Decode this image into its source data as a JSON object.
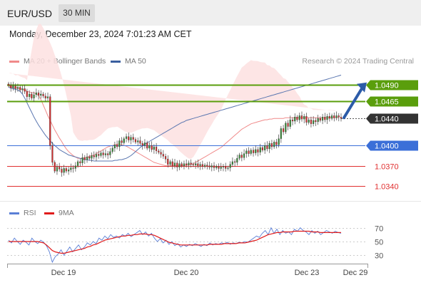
{
  "header": {
    "symbol": "EUR/USD",
    "timeframe": "30 MIN",
    "datetime": "Monday, December 23, 2024 7:01:23 AM CET",
    "credit": "Research © 2024 Trading Central"
  },
  "legend_main": [
    {
      "label": "MA 20 + Bollinger Bands",
      "color": "#f08a8a"
    },
    {
      "label": "MA 50",
      "color": "#3a5f9f"
    }
  ],
  "legend_rsi": [
    {
      "label": "RSI",
      "color": "#5a7fd6"
    },
    {
      "label": "9MA",
      "color": "#e01b1b"
    }
  ],
  "colors": {
    "resistance": "#5a9e0c",
    "pivot": "#3b6fd8",
    "support": "#e03030",
    "last_price": "#333333",
    "arrow": "#2c5ba8",
    "bollinger": "#fde0e0",
    "candle_up": "#3a8a3a",
    "candle_down": "#d23030"
  },
  "chart_data": [
    {
      "type": "candlestick",
      "series_name": "EUR/USD",
      "x_ticks": [
        "Dec 19",
        "Dec 20",
        "Dec 23",
        "Dec 29"
      ],
      "levels": [
        {
          "value": 1.049,
          "label": "1.0490",
          "kind": "resistance"
        },
        {
          "value": 1.0465,
          "label": "1.0465",
          "kind": "resistance"
        },
        {
          "value": 1.044,
          "label": "1.0440",
          "kind": "last"
        },
        {
          "value": 1.04,
          "label": "1.0400",
          "kind": "pivot"
        },
        {
          "value": 1.037,
          "label": "1.0370",
          "kind": "support"
        },
        {
          "value": 1.034,
          "label": "1.0340",
          "kind": "support"
        }
      ],
      "close": [
        1.0489,
        1.0485,
        1.0488,
        1.0484,
        1.0486,
        1.0482,
        1.0484,
        1.048,
        1.0472,
        1.0476,
        1.047,
        1.0475,
        1.0478,
        1.0474,
        1.0476,
        1.0473,
        1.047,
        1.0472,
        1.04,
        1.0375,
        1.0362,
        1.0368,
        1.0365,
        1.036,
        1.0366,
        1.0362,
        1.0364,
        1.0367,
        1.0366,
        1.037,
        1.0376,
        1.0374,
        1.0382,
        1.0379,
        1.0383,
        1.0381,
        1.0385,
        1.0383,
        1.0387,
        1.0385,
        1.0389,
        1.0386,
        1.0388,
        1.0386,
        1.0391,
        1.0396,
        1.0401,
        1.0398,
        1.0407,
        1.0404,
        1.041,
        1.0413,
        1.0408,
        1.0412,
        1.0409,
        1.0405,
        1.0407,
        1.0403,
        1.04,
        1.0404,
        1.0396,
        1.04,
        1.0394,
        1.0398,
        1.0392,
        1.039,
        1.0387,
        1.0384,
        1.038,
        1.0372,
        1.0376,
        1.037,
        1.0374,
        1.0368,
        1.0373,
        1.037,
        1.0373,
        1.0371,
        1.0374,
        1.0372,
        1.0371,
        1.0373,
        1.037,
        1.0372,
        1.0369,
        1.0371,
        1.037,
        1.0368,
        1.037,
        1.0367,
        1.0369,
        1.0366,
        1.0368,
        1.0369,
        1.0366,
        1.0367,
        1.0372,
        1.0376,
        1.0375,
        1.0381,
        1.0386,
        1.0382,
        1.0388,
        1.0392,
        1.0388,
        1.0393,
        1.0389,
        1.0394,
        1.039,
        1.0397,
        1.0393,
        1.04,
        1.0395,
        1.0403,
        1.0398,
        1.0405,
        1.0401,
        1.041,
        1.0425,
        1.042,
        1.0433,
        1.0428,
        1.0438,
        1.0436,
        1.0442,
        1.0438,
        1.0444,
        1.0439,
        1.0443,
        1.0434,
        1.0438,
        1.0432,
        1.0437,
        1.0435,
        1.044,
        1.0437,
        1.0442,
        1.0438,
        1.0443,
        1.044,
        1.0444,
        1.0441,
        1.0444,
        1.0442,
        1.044
      ],
      "ma20": [
        1.0488,
        1.0487,
        1.0486,
        1.0485,
        1.0485,
        1.0484,
        1.0483,
        1.0482,
        1.048,
        1.0479,
        1.0478,
        1.0478,
        1.0476,
        1.0474,
        1.0468,
        1.046,
        1.0452,
        1.0444,
        1.0437,
        1.043,
        1.0423,
        1.0417,
        1.0411,
        1.0406,
        1.04,
        1.0395,
        1.0391,
        1.0388,
        1.0385,
        1.0383,
        1.0381,
        1.0381,
        1.0381,
        1.0382,
        1.0383,
        1.0384,
        1.0385,
        1.0386,
        1.0388,
        1.039,
        1.0392,
        1.0394,
        1.0396,
        1.0398,
        1.0399,
        1.04,
        1.0401,
        1.0402,
        1.0402,
        1.0401,
        1.04,
        1.0399,
        1.0397,
        1.0395,
        1.0393,
        1.0391,
        1.0389,
        1.0387,
        1.0385,
        1.0383,
        1.0381,
        1.0379,
        1.0377,
        1.0375,
        1.0374,
        1.0373,
        1.0372,
        1.0371,
        1.037,
        1.037,
        1.037,
        1.037,
        1.037,
        1.037,
        1.037,
        1.037,
        1.037,
        1.0371,
        1.0371,
        1.0372,
        1.0373,
        1.0375,
        1.0377,
        1.0379,
        1.0381,
        1.0383,
        1.0385,
        1.0387,
        1.0389,
        1.0391,
        1.0393,
        1.0395,
        1.0397,
        1.04,
        1.0403,
        1.0406,
        1.0409,
        1.0412,
        1.0415,
        1.0418,
        1.0421,
        1.0424,
        1.0426,
        1.0428,
        1.043,
        1.0432,
        1.0433,
        1.0434,
        1.0435,
        1.0436,
        1.0437,
        1.0438,
        1.0438,
        1.0439,
        1.0439,
        1.044,
        1.044,
        1.044,
        1.044,
        1.044,
        1.0441,
        1.0441,
        1.0441,
        1.0441,
        1.0441,
        1.0441,
        1.0441,
        1.0441,
        1.0441,
        1.0441,
        1.0441,
        1.0441,
        1.0441,
        1.0441,
        1.0441,
        1.0441,
        1.0441,
        1.0441,
        1.0441,
        1.0441,
        1.0441,
        1.0441,
        1.0441,
        1.0441
      ],
      "ma50": [
        1.0486,
        1.0485,
        1.0484,
        1.0483,
        1.0482,
        1.048,
        1.0476,
        1.047,
        1.0463,
        1.0456,
        1.0449,
        1.0442,
        1.0436,
        1.043,
        1.0425,
        1.042,
        1.0415,
        1.0411,
        1.0407,
        1.0403,
        1.04,
        1.0397,
        1.0394,
        1.0392,
        1.039,
        1.0388,
        1.0386,
        1.0385,
        1.0384,
        1.0383,
        1.0382,
        1.0381,
        1.038,
        1.0379,
        1.0379,
        1.0378,
        1.0378,
        1.0377,
        1.0377,
        1.0377,
        1.0377,
        1.0377,
        1.0377,
        1.0377,
        1.0377,
        1.0377,
        1.0378,
        1.0378,
        1.0379,
        1.0379,
        1.038,
        1.0381,
        1.0383,
        1.0385,
        1.0388,
        1.0391,
        1.0394,
        1.0397,
        1.04,
        1.0402,
        1.0404,
        1.0406,
        1.0408,
        1.041,
        1.0412,
        1.0414,
        1.0416,
        1.0418,
        1.042,
        1.0422,
        1.0424,
        1.0426,
        1.0428,
        1.043,
        1.0432,
        1.0434,
        1.0435,
        1.0437,
        1.0438,
        1.0439,
        1.044,
        1.0441,
        1.0442,
        1.0443,
        1.0444,
        1.0445,
        1.0446,
        1.0447,
        1.0448,
        1.0449,
        1.045,
        1.0451,
        1.0452,
        1.0453,
        1.0454,
        1.0455,
        1.0456,
        1.0457,
        1.0458,
        1.0459,
        1.046,
        1.0461,
        1.0462,
        1.0463,
        1.0464,
        1.0465,
        1.0466,
        1.0467,
        1.0468,
        1.0469,
        1.047,
        1.0471,
        1.0472,
        1.0473,
        1.0474,
        1.0475,
        1.0476,
        1.0477,
        1.0478,
        1.0479,
        1.048,
        1.0481,
        1.0482,
        1.0483,
        1.0484,
        1.0485,
        1.0486,
        1.0487,
        1.0488,
        1.0489,
        1.049,
        1.0491,
        1.0492,
        1.0493,
        1.0494,
        1.0495,
        1.0496,
        1.0497,
        1.0498,
        1.0499,
        1.05,
        1.0501,
        1.0502,
        1.0503,
        1.0504,
        1.0505
      ],
      "ylim": [
        1.0318,
        1.0515
      ],
      "forecast": {
        "from": 1.0441,
        "to": 1.049
      }
    },
    {
      "type": "line",
      "series": [
        {
          "name": "RSI",
          "values": [
            52,
            48,
            55,
            50,
            46,
            52,
            49,
            45,
            55,
            50,
            47,
            52,
            49,
            44,
            35,
            20,
            28,
            32,
            38,
            30,
            36,
            42,
            35,
            40,
            45,
            38,
            42,
            48,
            45,
            50,
            47,
            55,
            52,
            58,
            54,
            60,
            56,
            58,
            55,
            60,
            58,
            62,
            57,
            60,
            63,
            66,
            60,
            64,
            58,
            62,
            55,
            50,
            54,
            48,
            52,
            46,
            50,
            44,
            47,
            42,
            45,
            43,
            46,
            44,
            47,
            45,
            43,
            46,
            44,
            48,
            45,
            47,
            46,
            48,
            47,
            49,
            46,
            48,
            47,
            49,
            48,
            50,
            49,
            52,
            55,
            58,
            56,
            62,
            66,
            60,
            70,
            62,
            68,
            60,
            66,
            62,
            64,
            60,
            68,
            65,
            70,
            66,
            64,
            60,
            66,
            62,
            65,
            60,
            63,
            66,
            64,
            62,
            65,
            63,
            62
          ]
        },
        {
          "name": "9MA",
          "values": [
            50,
            50,
            50,
            50,
            50,
            50,
            50,
            50,
            50,
            50,
            50,
            49,
            48,
            45,
            41,
            37,
            35,
            34,
            33,
            33,
            34,
            35,
            36,
            37,
            38,
            39,
            40,
            42,
            43,
            45,
            46,
            48,
            50,
            52,
            53,
            54,
            55,
            56,
            57,
            58,
            58,
            59,
            59,
            60,
            60,
            61,
            61,
            61,
            60,
            60,
            59,
            57,
            55,
            53,
            51,
            49,
            48,
            47,
            46,
            45,
            45,
            45,
            45,
            45,
            45,
            45,
            45,
            45,
            45,
            46,
            46,
            46,
            46,
            46,
            47,
            47,
            47,
            47,
            47,
            48,
            48,
            48,
            49,
            50,
            51,
            52,
            54,
            56,
            58,
            60,
            61,
            62,
            63,
            63,
            64,
            64,
            64,
            64,
            65,
            65,
            65,
            65,
            65,
            65,
            64,
            64,
            64,
            63,
            63,
            63,
            63,
            63,
            63,
            63,
            63
          ]
        }
      ],
      "y_ticks": [
        "70",
        "50",
        "30"
      ],
      "ylim": [
        20,
        80
      ]
    }
  ]
}
